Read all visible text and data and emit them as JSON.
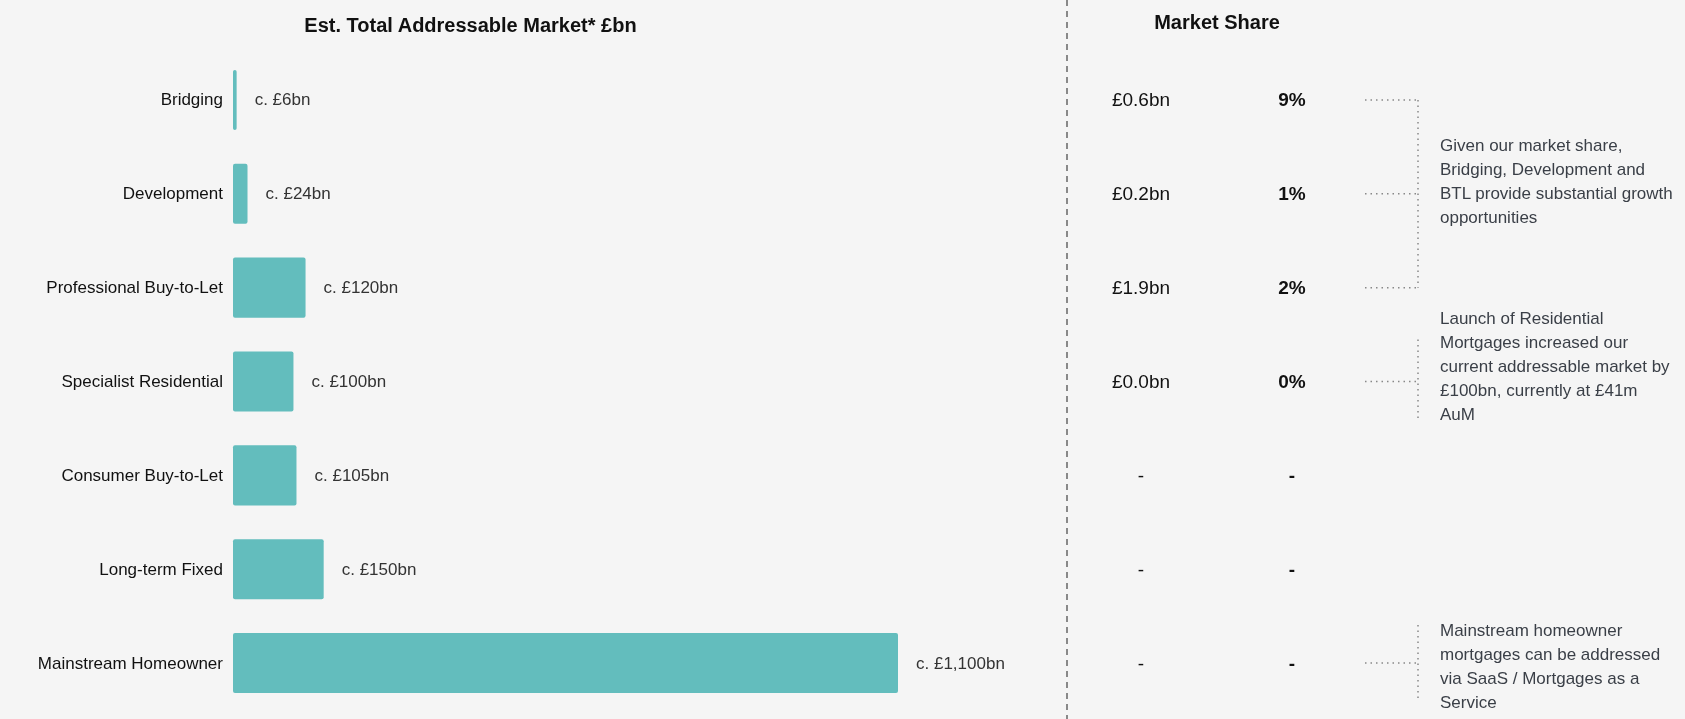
{
  "chart_data": {
    "type": "bar",
    "orientation": "horizontal",
    "title": "Est. Total Addressable Market* £bn",
    "categories": [
      "Bridging",
      "Development",
      "Professional Buy-to-Let",
      "Specialist Residential",
      "Consumer Buy-to-Let",
      "Long-term Fixed",
      "Mainstream Homeowner"
    ],
    "values": [
      6,
      24,
      120,
      100,
      105,
      150,
      1100
    ],
    "value_labels": [
      "c. £6bn",
      "c. £24bn",
      "c. £120bn",
      "c. £100bn",
      "c. £105bn",
      "c. £150bn",
      "c. £1,100bn"
    ],
    "color": "#63bdbd",
    "annotations": [
      "Market Share",
      "£0.6bn",
      "9%",
      "£0.2bn",
      "1%",
      "£1.9bn",
      "2%",
      "£0.0bn",
      "0%",
      "-",
      "-",
      "-",
      "-",
      "-",
      "-",
      "Given our market share, Bridging, Development and BTL provide substantial growth opportunities",
      "Launch of Residential Mortgages increased our current addressable market by £100bn, currently at £41m AuM",
      "Mainstream homeowner mortgages can be addressed via SaaS / Mortgages as a Service"
    ]
  }
}
